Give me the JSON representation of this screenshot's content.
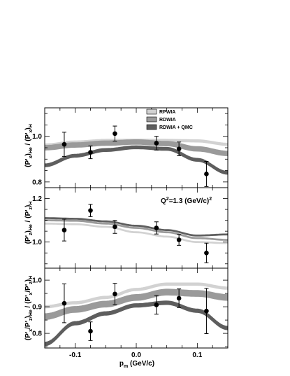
{
  "chart_data": {
    "type": "line",
    "x_axis": {
      "label_main": "p",
      "label_sub": "m",
      "label_unit": " (GeV/c)",
      "range": [
        -0.15,
        0.15
      ],
      "ticks": [
        -0.1,
        0.0,
        0.1
      ],
      "tick_labels": [
        "-0.1",
        "0.0",
        "0.1"
      ]
    },
    "legend": {
      "placement": "top-right of top panel",
      "entries": [
        {
          "label": "RPWIA",
          "color": "#d2d2d2"
        },
        {
          "label": "RDWIA",
          "color": "#9a9a9a"
        },
        {
          "label": "RDWIA + QMC",
          "color": "#5e5e5e"
        }
      ]
    },
    "annotation": {
      "text_main": "Q",
      "sup1": "2",
      "text_mid": "=1.3 (GeV/c)",
      "sup2": "2"
    },
    "panels": [
      {
        "ylabel": {
          "a": "(P'",
          "a_sub": "x",
          "b": ")",
          "b_sub": "He",
          "c": " / (P'",
          "c_sub": "x",
          "d": ")",
          "d_sub": "H"
        },
        "ylim": [
          0.775,
          1.125
        ],
        "yticks": [
          0.8,
          1.0
        ],
        "ytick_labels": [
          "0.8",
          "1.0"
        ],
        "data": {
          "x": [
            -0.118,
            -0.075,
            -0.035,
            0.033,
            0.07,
            0.115
          ],
          "y": [
            0.965,
            0.93,
            1.012,
            0.97,
            0.945,
            0.835
          ],
          "yerr": [
            0.053,
            0.028,
            0.033,
            0.03,
            0.03,
            0.055
          ]
        },
        "series": [
          {
            "name": "RPWIA",
            "x": [
              -0.15,
              -0.1,
              -0.05,
              0.0,
              0.05,
              0.1,
              0.15
            ],
            "y": [
              0.962,
              0.975,
              0.982,
              0.983,
              0.982,
              0.98,
              0.965
            ],
            "band": 0.01
          },
          {
            "name": "RDWIA",
            "x": [
              -0.15,
              -0.1,
              -0.05,
              0.0,
              0.05,
              0.1,
              0.15
            ],
            "y": [
              0.95,
              0.962,
              0.97,
              0.975,
              0.968,
              0.945,
              0.925
            ],
            "band": 0.02
          },
          {
            "name": "RDWIA + QMC",
            "x": [
              -0.15,
              -0.1,
              -0.05,
              0.0,
              0.05,
              0.1,
              0.15
            ],
            "y": [
              0.873,
              0.915,
              0.94,
              0.952,
              0.945,
              0.897,
              0.84
            ],
            "band": 0.013
          }
        ]
      },
      {
        "ylabel": {
          "a": "(P'",
          "a_sub": "z",
          "b": ")",
          "b_sub": "He",
          "c": " / (P'",
          "c_sub": "z",
          "d": ")",
          "d_sub": "H"
        },
        "ylim": [
          0.88,
          1.25
        ],
        "yticks": [
          1.0,
          1.2
        ],
        "ytick_labels": [
          "1.0",
          "1.2"
        ],
        "data": {
          "x": [
            -0.118,
            -0.075,
            -0.035,
            0.033,
            0.07,
            0.115
          ],
          "y": [
            1.055,
            1.145,
            1.07,
            1.065,
            1.01,
            0.95
          ],
          "yerr": [
            0.05,
            0.028,
            0.03,
            0.028,
            0.025,
            0.045
          ]
        },
        "series": [
          {
            "name": "RPWIA",
            "x": [
              -0.15,
              -0.1,
              -0.05,
              0.0,
              0.05,
              0.1,
              0.15
            ],
            "y": [
              1.085,
              1.082,
              1.07,
              1.045,
              1.025,
              1.0,
              0.995
            ],
            "band": 0.005
          },
          {
            "name": "RDWIA",
            "x": [
              -0.15,
              -0.1,
              -0.05,
              0.0,
              0.05,
              0.1,
              0.15
            ],
            "y": [
              1.1,
              1.098,
              1.085,
              1.065,
              1.045,
              1.018,
              1.01
            ],
            "band": 0.005
          },
          {
            "name": "RDWIA + QMC",
            "x": [
              -0.15,
              -0.1,
              -0.05,
              0.0,
              0.05,
              0.1,
              0.15
            ],
            "y": [
              1.11,
              1.107,
              1.095,
              1.075,
              1.055,
              1.03,
              1.035
            ],
            "band": 0.005
          }
        ]
      },
      {
        "ylabel": {
          "a": "(P'",
          "a_sub": "x",
          "b": "/P'",
          "b_sub": "z",
          "c": ")",
          "c_sub": "He",
          "d": " / (P'",
          "d_sub": "x",
          "e": "/P'",
          "e_sub": "z",
          "f": ")",
          "f_sub": "H"
        },
        "ylim": [
          0.745,
          1.045
        ],
        "yticks": [
          0.8,
          0.9,
          1.0
        ],
        "ytick_labels": [
          "0.8",
          "0.9",
          "1.0"
        ],
        "data": {
          "x": [
            -0.118,
            -0.075,
            -0.035,
            0.033,
            0.07,
            0.115
          ],
          "y": [
            0.913,
            0.808,
            0.948,
            0.907,
            0.932,
            0.884
          ],
          "yerr": [
            0.073,
            0.035,
            0.04,
            0.035,
            0.035,
            0.085
          ]
        },
        "series": [
          {
            "name": "RPWIA",
            "x": [
              -0.15,
              -0.1,
              -0.05,
              0.0,
              0.05,
              0.1,
              0.15
            ],
            "y": [
              0.9,
              0.915,
              0.935,
              0.965,
              0.985,
              0.985,
              0.97
            ],
            "band": 0.009
          },
          {
            "name": "RDWIA",
            "x": [
              -0.15,
              -0.1,
              -0.05,
              0.0,
              0.05,
              0.1,
              0.15
            ],
            "y": [
              0.863,
              0.89,
              0.91,
              0.935,
              0.955,
              0.95,
              0.935
            ],
            "band": 0.022
          },
          {
            "name": "RDWIA + QMC",
            "x": [
              -0.15,
              -0.1,
              -0.05,
              0.0,
              0.05,
              0.1,
              0.15
            ],
            "y": [
              0.76,
              0.838,
              0.875,
              0.905,
              0.915,
              0.885,
              0.82
            ],
            "band": 0.013
          }
        ]
      }
    ]
  }
}
